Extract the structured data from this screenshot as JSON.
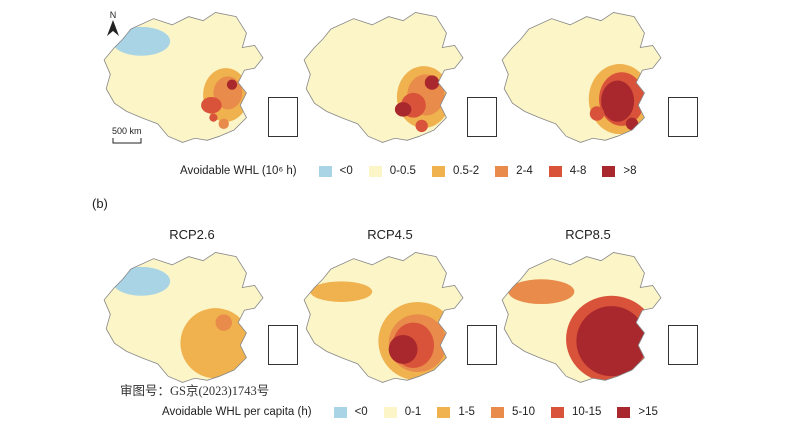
{
  "panel_a": {
    "legend": {
      "title": "Avoidable WHL (10⁶ h)",
      "items": [
        {
          "label": "<0",
          "color": "#a8d4e6"
        },
        {
          "label": "0-0.5",
          "color": "#fbf5c8"
        },
        {
          "label": "0.5-2",
          "color": "#f0b24f"
        },
        {
          "label": "2-4",
          "color": "#e98b4a"
        },
        {
          "label": "4-8",
          "color": "#d9533a"
        },
        {
          "label": ">8",
          "color": "#a8282d"
        }
      ]
    },
    "north_label": "N",
    "scale_label": "500 km"
  },
  "panel_b": {
    "label": "(b)",
    "scenarios": [
      "RCP2.6",
      "RCP4.5",
      "RCP8.5"
    ],
    "legend": {
      "title": "Avoidable WHL per capita (h)",
      "items": [
        {
          "label": "<0",
          "color": "#a8d4e6"
        },
        {
          "label": "0-1",
          "color": "#fbf5c8"
        },
        {
          "label": "1-5",
          "color": "#f0b24f"
        },
        {
          "label": "5-10",
          "color": "#e98b4a"
        },
        {
          "label": "10-15",
          "color": "#d9533a"
        },
        {
          "label": ">15",
          "color": "#a8282d"
        }
      ]
    }
  },
  "approval_number": "审图号：GS京(2023)1743号"
}
